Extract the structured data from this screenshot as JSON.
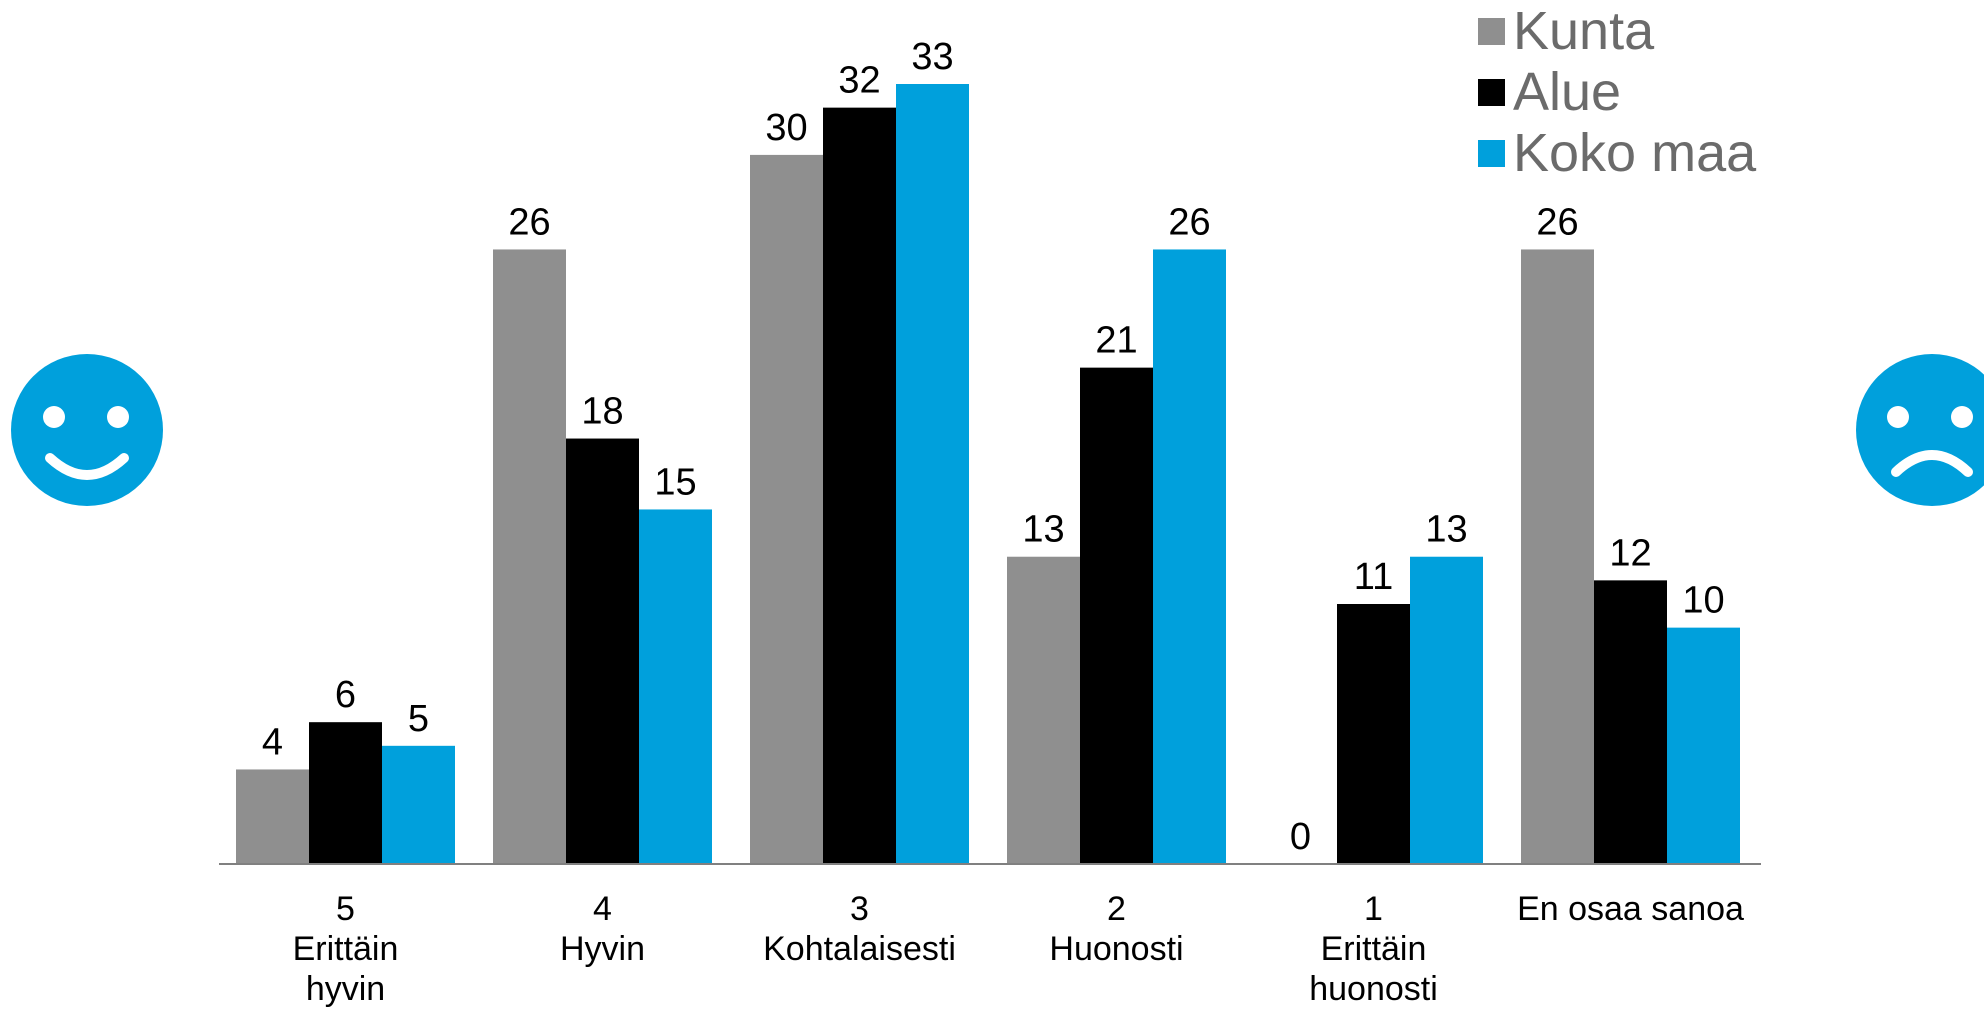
{
  "chart_data": {
    "type": "bar",
    "categories": [
      [
        "5",
        "Erittäin",
        "hyvin"
      ],
      [
        "4",
        "Hyvin"
      ],
      [
        "3",
        "Kohtalaisesti"
      ],
      [
        "2",
        "Huonosti"
      ],
      [
        "1",
        "Erittäin",
        "huonosti"
      ],
      [
        "En osaa sanoa"
      ]
    ],
    "series": [
      {
        "name": "Kunta",
        "color": "#8f8f8f",
        "values": [
          4,
          26,
          30,
          13,
          0,
          26
        ]
      },
      {
        "name": "Alue",
        "color": "#000000",
        "values": [
          6,
          18,
          32,
          21,
          11,
          12
        ]
      },
      {
        "name": "Koko maa",
        "color": "#00a0dc",
        "values": [
          5,
          15,
          33,
          26,
          13,
          10
        ]
      }
    ],
    "ylim": [
      0,
      33
    ],
    "legend_position": "top-right",
    "grid": false
  },
  "icons": {
    "left": {
      "name": "smiley-happy-icon",
      "color": "#00a0dc"
    },
    "right": {
      "name": "smiley-sad-icon",
      "color": "#00a0dc"
    }
  }
}
